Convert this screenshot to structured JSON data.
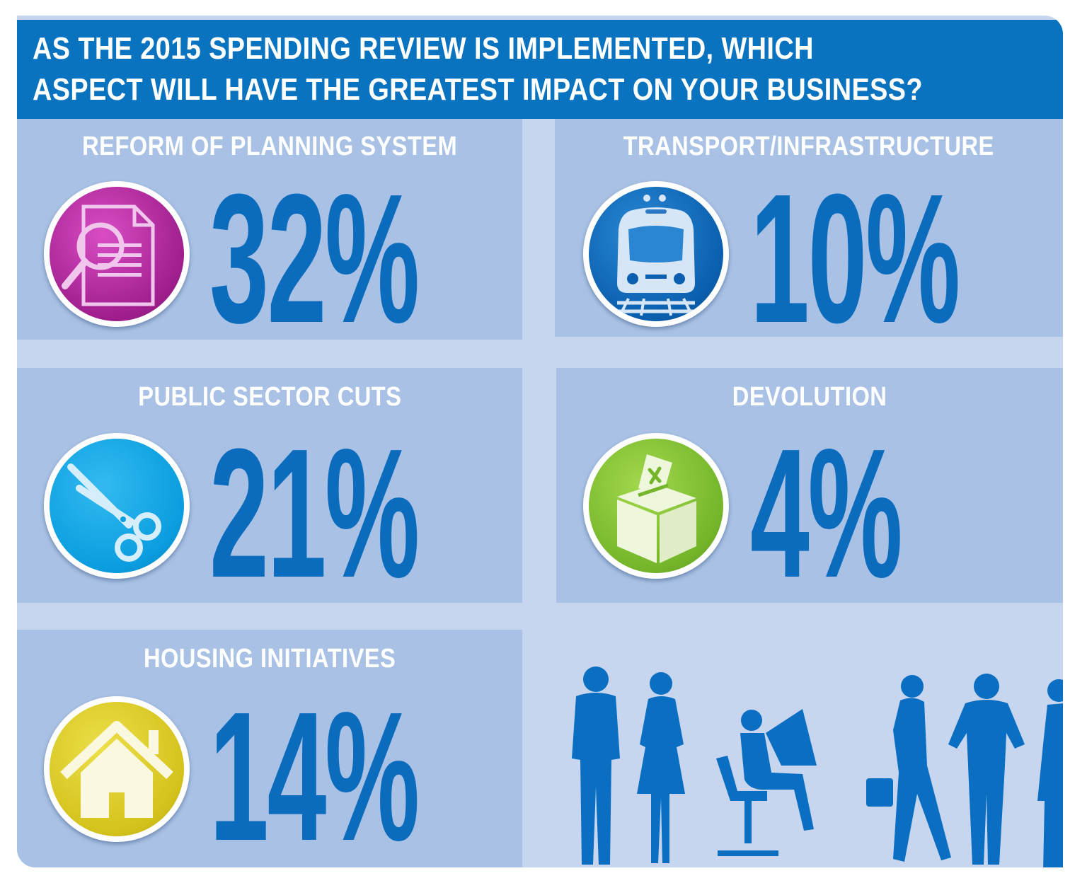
{
  "title": {
    "line1": "AS THE 2015 SPENDING REVIEW IS IMPLEMENTED, WHICH",
    "line2": "ASPECT WILL HAVE THE GREATEST IMPACT ON YOUR BUSINESS?"
  },
  "panels": [
    {
      "label": "REFORM OF PLANNING SYSTEM",
      "value": "32%",
      "icon": "document-magnifier-icon",
      "color": "#b52aa0"
    },
    {
      "label": "TRANSPORT/INFRASTRUCTURE",
      "value": "10%",
      "icon": "train-icon",
      "color": "#0a6fc2"
    },
    {
      "label": "PUBLIC SECTOR CUTS",
      "value": "21%",
      "icon": "scissors-icon",
      "color": "#10a5e6"
    },
    {
      "label": "DEVOLUTION",
      "value": "4%",
      "icon": "ballot-box-icon",
      "color": "#7dbf2a"
    },
    {
      "label": "HOUSING INITIATIVES",
      "value": "14%",
      "icon": "house-icon",
      "color": "#d9c620"
    }
  ],
  "colors": {
    "frame": "#c7d5ee",
    "panel": "#a8c1e4",
    "title_bar": "#0a73c0",
    "accent": "#0b6cbd"
  }
}
